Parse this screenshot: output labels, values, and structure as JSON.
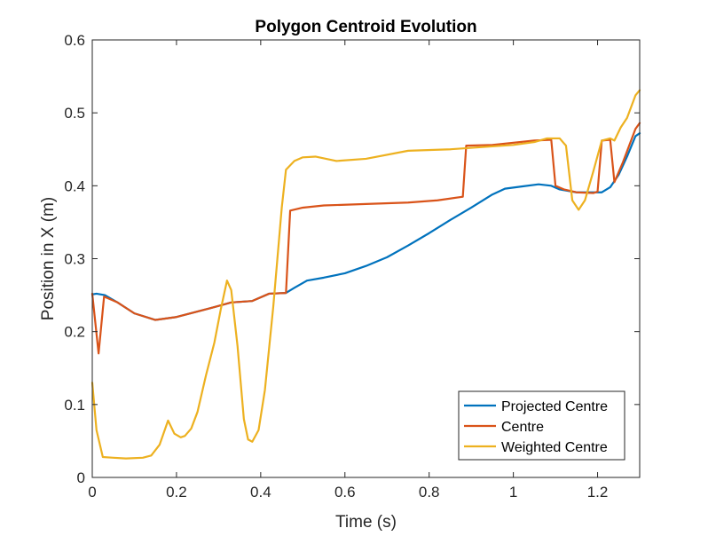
{
  "chart_data": {
    "type": "line",
    "title": "Polygon Centroid Evolution",
    "xlabel": "Time (s)",
    "ylabel": "Position in X (m)",
    "xlim": [
      0,
      1.3
    ],
    "ylim": [
      0,
      0.6
    ],
    "xticks": [
      0,
      0.2,
      0.4,
      0.6,
      0.8,
      1,
      1.2
    ],
    "xtick_labels": [
      "0",
      "0.2",
      "0.4",
      "0.6",
      "0.8",
      "1",
      "1.2"
    ],
    "yticks": [
      0,
      0.1,
      0.2,
      0.3,
      0.4,
      0.5,
      0.6
    ],
    "ytick_labels": [
      "0",
      "0.1",
      "0.2",
      "0.3",
      "0.4",
      "0.5",
      "0.6"
    ],
    "grid": false,
    "legend_position": "bottom-right",
    "series": [
      {
        "name": "Projected Centre",
        "color": "#0072BD",
        "points": [
          [
            0,
            0.251
          ],
          [
            0.01,
            0.252
          ],
          [
            0.03,
            0.25
          ],
          [
            0.06,
            0.24
          ],
          [
            0.1,
            0.225
          ],
          [
            0.15,
            0.216
          ],
          [
            0.2,
            0.22
          ],
          [
            0.28,
            0.232
          ],
          [
            0.33,
            0.24
          ],
          [
            0.38,
            0.242
          ],
          [
            0.42,
            0.252
          ],
          [
            0.46,
            0.253
          ],
          [
            0.48,
            0.26
          ],
          [
            0.51,
            0.27
          ],
          [
            0.55,
            0.274
          ],
          [
            0.6,
            0.28
          ],
          [
            0.65,
            0.29
          ],
          [
            0.7,
            0.302
          ],
          [
            0.75,
            0.318
          ],
          [
            0.8,
            0.335
          ],
          [
            0.85,
            0.353
          ],
          [
            0.9,
            0.37
          ],
          [
            0.95,
            0.388
          ],
          [
            0.98,
            0.396
          ],
          [
            1.02,
            0.399
          ],
          [
            1.06,
            0.402
          ],
          [
            1.09,
            0.4
          ],
          [
            1.11,
            0.395
          ],
          [
            1.15,
            0.391
          ],
          [
            1.21,
            0.391
          ],
          [
            1.23,
            0.398
          ],
          [
            1.25,
            0.415
          ],
          [
            1.27,
            0.44
          ],
          [
            1.29,
            0.468
          ],
          [
            1.3,
            0.472
          ]
        ]
      },
      {
        "name": "Centre",
        "color": "#D95319",
        "points": [
          [
            0,
            0.252
          ],
          [
            0.015,
            0.17
          ],
          [
            0.028,
            0.248
          ],
          [
            0.06,
            0.24
          ],
          [
            0.1,
            0.225
          ],
          [
            0.15,
            0.216
          ],
          [
            0.2,
            0.22
          ],
          [
            0.28,
            0.232
          ],
          [
            0.33,
            0.24
          ],
          [
            0.38,
            0.242
          ],
          [
            0.42,
            0.252
          ],
          [
            0.46,
            0.253
          ],
          [
            0.47,
            0.366
          ],
          [
            0.5,
            0.37
          ],
          [
            0.55,
            0.373
          ],
          [
            0.65,
            0.375
          ],
          [
            0.75,
            0.377
          ],
          [
            0.82,
            0.38
          ],
          [
            0.88,
            0.385
          ],
          [
            0.888,
            0.455
          ],
          [
            0.95,
            0.456
          ],
          [
            1.05,
            0.462
          ],
          [
            1.09,
            0.463
          ],
          [
            1.1,
            0.4
          ],
          [
            1.12,
            0.395
          ],
          [
            1.15,
            0.391
          ],
          [
            1.19,
            0.39
          ],
          [
            1.2,
            0.392
          ],
          [
            1.21,
            0.462
          ],
          [
            1.23,
            0.463
          ],
          [
            1.24,
            0.405
          ],
          [
            1.26,
            0.432
          ],
          [
            1.29,
            0.478
          ],
          [
            1.3,
            0.486
          ]
        ]
      },
      {
        "name": "Weighted Centre",
        "color": "#EDB120",
        "points": [
          [
            0,
            0.13
          ],
          [
            0.01,
            0.065
          ],
          [
            0.025,
            0.028
          ],
          [
            0.05,
            0.027
          ],
          [
            0.08,
            0.026
          ],
          [
            0.12,
            0.027
          ],
          [
            0.14,
            0.03
          ],
          [
            0.16,
            0.045
          ],
          [
            0.18,
            0.078
          ],
          [
            0.195,
            0.06
          ],
          [
            0.21,
            0.055
          ],
          [
            0.22,
            0.057
          ],
          [
            0.235,
            0.067
          ],
          [
            0.25,
            0.09
          ],
          [
            0.27,
            0.14
          ],
          [
            0.29,
            0.185
          ],
          [
            0.305,
            0.23
          ],
          [
            0.32,
            0.27
          ],
          [
            0.33,
            0.257
          ],
          [
            0.345,
            0.18
          ],
          [
            0.36,
            0.08
          ],
          [
            0.37,
            0.052
          ],
          [
            0.38,
            0.049
          ],
          [
            0.395,
            0.065
          ],
          [
            0.41,
            0.12
          ],
          [
            0.43,
            0.235
          ],
          [
            0.45,
            0.37
          ],
          [
            0.46,
            0.422
          ],
          [
            0.48,
            0.434
          ],
          [
            0.5,
            0.439
          ],
          [
            0.53,
            0.44
          ],
          [
            0.58,
            0.434
          ],
          [
            0.65,
            0.437
          ],
          [
            0.75,
            0.448
          ],
          [
            0.85,
            0.45
          ],
          [
            0.95,
            0.454
          ],
          [
            1.0,
            0.456
          ],
          [
            1.05,
            0.46
          ],
          [
            1.08,
            0.465
          ],
          [
            1.11,
            0.465
          ],
          [
            1.125,
            0.455
          ],
          [
            1.14,
            0.38
          ],
          [
            1.155,
            0.367
          ],
          [
            1.17,
            0.38
          ],
          [
            1.19,
            0.42
          ],
          [
            1.21,
            0.462
          ],
          [
            1.23,
            0.465
          ],
          [
            1.24,
            0.462
          ],
          [
            1.255,
            0.48
          ],
          [
            1.27,
            0.493
          ],
          [
            1.29,
            0.524
          ],
          [
            1.3,
            0.531
          ]
        ]
      }
    ]
  }
}
